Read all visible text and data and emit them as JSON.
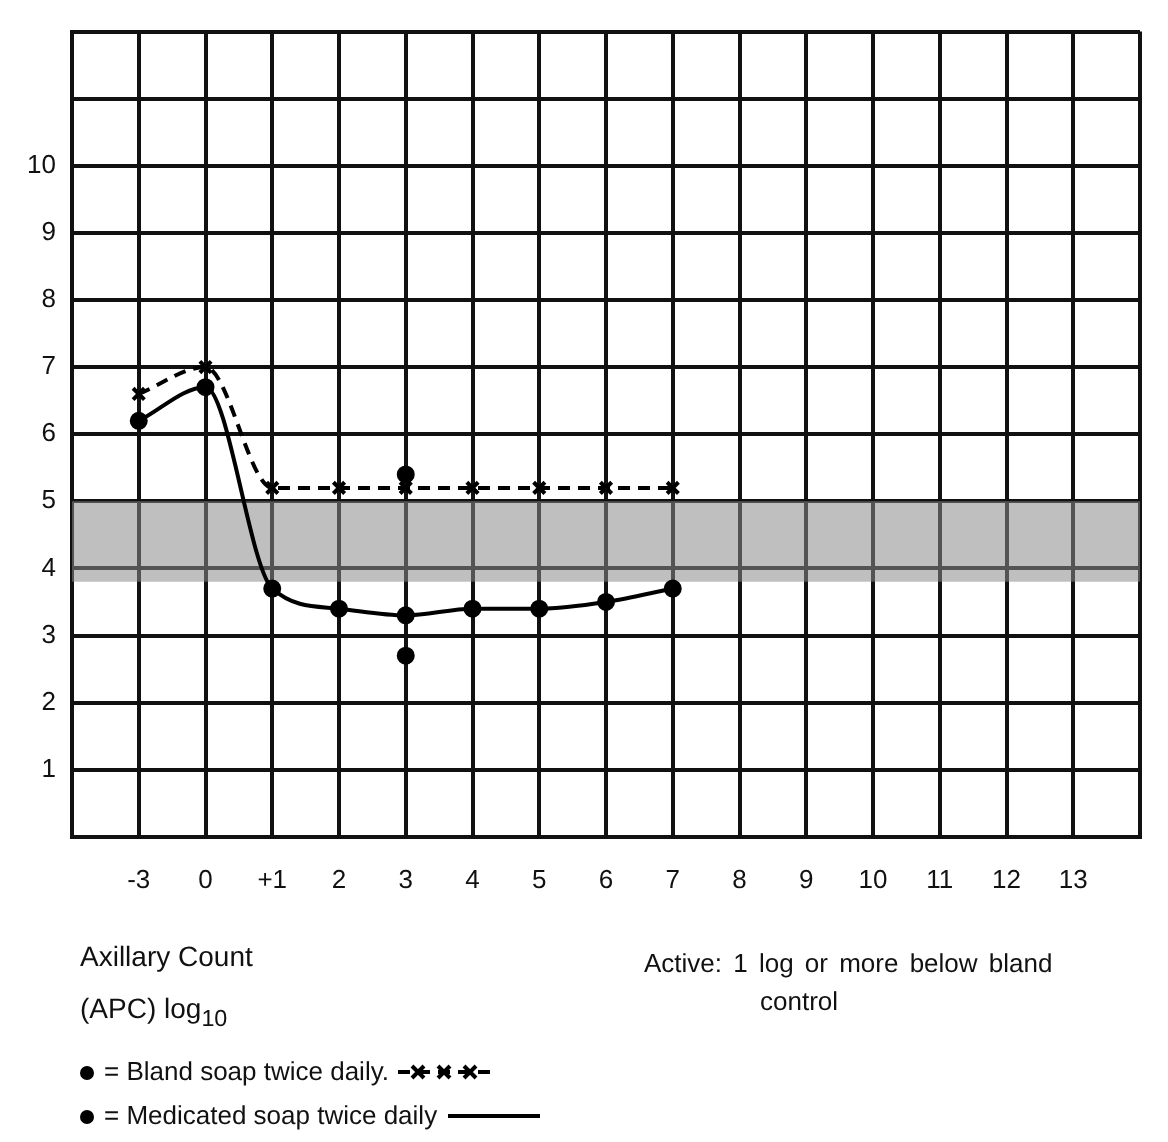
{
  "chart_data": {
    "type": "line",
    "annotations": [
      "Axillary Count",
      "(APC) log$_{10}$",
      "Active: 1 log or more below bland control"
    ],
    "categories": [
      null,
      "-3",
      "0",
      "+1",
      "2",
      "3",
      "4",
      "5",
      "6",
      "7",
      "8",
      "9",
      "10",
      "11",
      "12",
      "13",
      null
    ],
    "ylim": [
      0,
      12
    ],
    "yticks": [
      {
        "value": 0,
        "label": null
      },
      1,
      2,
      3,
      4,
      5,
      6,
      7,
      8,
      9,
      10,
      {
        "value": 11,
        "label": null
      },
      {
        "value": 12,
        "label": null
      }
    ],
    "grid": true,
    "legend": "bottom left",
    "series": [
      {
        "name": "= Bland soap twice daily.",
        "color": "#000000",
        "marker": "cross",
        "line_style": "dashed",
        "values": [
          null,
          6.6,
          7.0,
          5.2,
          5.2,
          5.2,
          5.2,
          5.2,
          5.2,
          5.2,
          null,
          null,
          null,
          null,
          null,
          null,
          null
        ]
      },
      {
        "name": "= Medicated soap twice daily",
        "color": "#000000",
        "marker": "circle",
        "line_style": "solid",
        "values": [
          null,
          6.2,
          6.7,
          3.7,
          3.4,
          3.3,
          3.4,
          3.4,
          3.5,
          3.7,
          null,
          null,
          null,
          null,
          null,
          null,
          null
        ]
      },
      {
        "type": "scatter",
        "color": "#000000",
        "marker": "circle",
        "x": [
          "3",
          "3"
        ],
        "values": [
          5.4,
          2.7
        ]
      }
    ],
    "bands": [
      {
        "axis": "y",
        "from": 3.8,
        "to": 5.0,
        "color": "#8a8a8a"
      }
    ]
  }
}
